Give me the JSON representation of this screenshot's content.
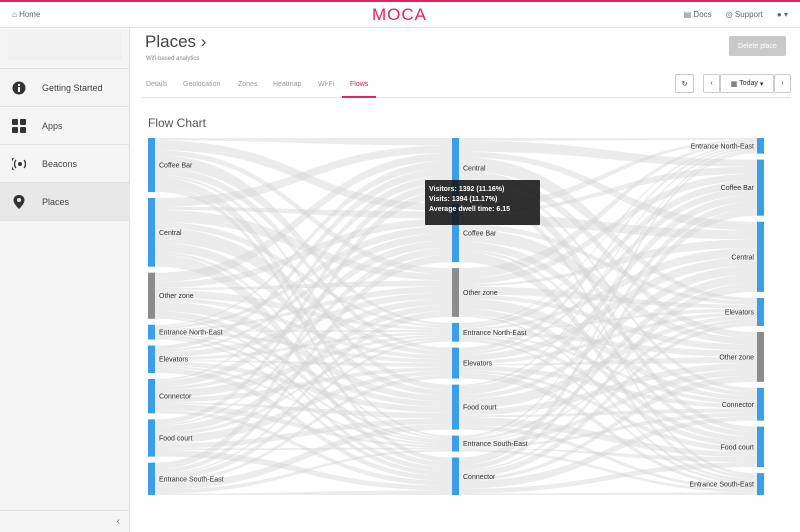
{
  "topbar": {
    "home_label": "Home",
    "logo_text": "MOCA",
    "docs_label": "Docs",
    "support_label": "Support",
    "user_label": "▾",
    "brand_color": "#e4215a"
  },
  "sidebar": {
    "items": [
      {
        "label": "Getting Started",
        "icon": "info-icon"
      },
      {
        "label": "Apps",
        "icon": "apps-grid-icon"
      },
      {
        "label": "Beacons",
        "icon": "beacon-icon"
      },
      {
        "label": "Places",
        "icon": "map-marker-icon",
        "active": true
      }
    ],
    "collapse_label": "‹"
  },
  "header": {
    "title": "Places ›",
    "subtitle": "Wifi-based analytics",
    "delete_label": "Delete place"
  },
  "tabs": [
    {
      "label": "Details"
    },
    {
      "label": "Geolocation"
    },
    {
      "label": "Zones"
    },
    {
      "label": "Heatmap"
    },
    {
      "label": "Wi-Fi"
    },
    {
      "label": "Flows",
      "active": true
    }
  ],
  "controls": {
    "refresh_label": "↻",
    "prev_label": "‹",
    "date_label": "Today",
    "next_label": "›"
  },
  "chart_title": "Flow Chart",
  "tooltip": {
    "line1": "Visitors: 1392 (11.16%)",
    "line2": "Visits: 1394 (11.17%)",
    "line3": "Average dwell time: 6.15"
  },
  "chart_data": {
    "type": "sankey",
    "title": "Flow Chart",
    "columns": [
      [
        {
          "name": "Coffee Bar",
          "value": 55,
          "color": "#3a9ee8"
        },
        {
          "name": "Central",
          "value": 70,
          "color": "#3a9ee8"
        },
        {
          "name": "Other zone",
          "value": 47,
          "color": "#8c8c8c"
        },
        {
          "name": "Entrance North-East",
          "value": 15,
          "color": "#3a9ee8"
        },
        {
          "name": "Elevators",
          "value": 28,
          "color": "#3a9ee8"
        },
        {
          "name": "Connector",
          "value": 35,
          "color": "#3a9ee8"
        },
        {
          "name": "Food court",
          "value": 38,
          "color": "#3a9ee8"
        },
        {
          "name": "Entrance South-East",
          "value": 33,
          "color": "#3a9ee8"
        }
      ],
      [
        {
          "name": "Central",
          "value": 64,
          "color": "#3a9ee8"
        },
        {
          "name": "Coffee Bar",
          "value": 62,
          "color": "#3a9ee8"
        },
        {
          "name": "Other zone",
          "value": 52,
          "color": "#8c8c8c"
        },
        {
          "name": "Entrance North-East",
          "value": 20,
          "color": "#3a9ee8"
        },
        {
          "name": "Elevators",
          "value": 33,
          "color": "#3a9ee8"
        },
        {
          "name": "Food court",
          "value": 48,
          "color": "#3a9ee8"
        },
        {
          "name": "Entrance South-East",
          "value": 17,
          "color": "#3a9ee8"
        },
        {
          "name": "Connector",
          "value": 40,
          "color": "#3a9ee8"
        }
      ],
      [
        {
          "name": "Entrance North-East",
          "value": 10,
          "color": "#3a9ee8"
        },
        {
          "name": "Coffee Bar",
          "value": 36,
          "color": "#3a9ee8"
        },
        {
          "name": "Central",
          "value": 45,
          "color": "#3a9ee8"
        },
        {
          "name": "Elevators",
          "value": 18,
          "color": "#3a9ee8"
        },
        {
          "name": "Other zone",
          "value": 32,
          "color": "#8c8c8c"
        },
        {
          "name": "Connector",
          "value": 21,
          "color": "#3a9ee8"
        },
        {
          "name": "Food court",
          "value": 26,
          "color": "#3a9ee8"
        },
        {
          "name": "Entrance South-East",
          "value": 14,
          "color": "#3a9ee8"
        }
      ]
    ],
    "link_color": "#d4d4d4"
  }
}
